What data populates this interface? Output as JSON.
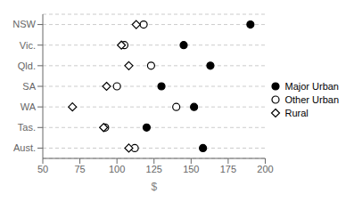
{
  "chart_data": {
    "type": "scatter",
    "categories": [
      "NSW",
      "Vic.",
      "Qld.",
      "SA",
      "WA",
      "Tas.",
      "Aust."
    ],
    "series": [
      {
        "name": "Major Urban",
        "color": "#000000",
        "marker": "circle",
        "values": [
          190,
          145,
          163,
          130,
          152,
          120,
          158
        ]
      },
      {
        "name": "Other Urban",
        "color": "#000000",
        "marker": "open_circle",
        "values": [
          118,
          105,
          123,
          100,
          140,
          92,
          112
        ]
      },
      {
        "name": "Rural",
        "color": "#000000",
        "marker": "open_diamond",
        "values": [
          113,
          103,
          108,
          93,
          70,
          91,
          108
        ]
      }
    ],
    "xlabel": "$",
    "xlim": [
      50,
      200
    ],
    "xticks": [
      50,
      75,
      100,
      125,
      150,
      175,
      200
    ],
    "grid": true,
    "legend": "right"
  }
}
